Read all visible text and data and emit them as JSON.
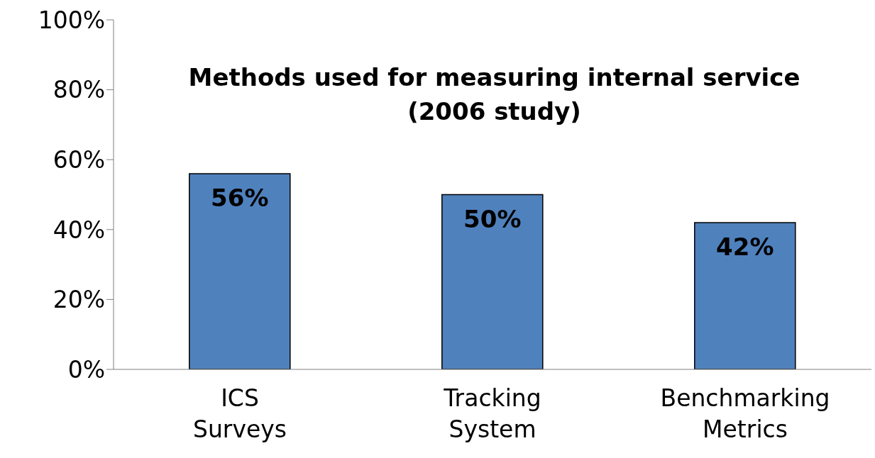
{
  "chart_data": {
    "type": "bar",
    "title": "Methods used for measuring internal service (2006 study)",
    "categories": [
      "ICS Surveys",
      "Tracking System",
      "Benchmarking Metrics"
    ],
    "values": [
      56,
      50,
      42
    ],
    "color": "#4f81bd",
    "value_labels": [
      "56%",
      "50%",
      "42%"
    ],
    "ylim": [
      0,
      100
    ],
    "yticks": [
      {
        "value": 0,
        "label": "0%"
      },
      {
        "value": 20,
        "label": "20%"
      },
      {
        "value": 40,
        "label": "40%"
      },
      {
        "value": 60,
        "label": "60%"
      },
      {
        "value": 80,
        "label": "80%"
      },
      {
        "value": 100,
        "label": "100%"
      }
    ],
    "grid": false,
    "legend": false
  }
}
